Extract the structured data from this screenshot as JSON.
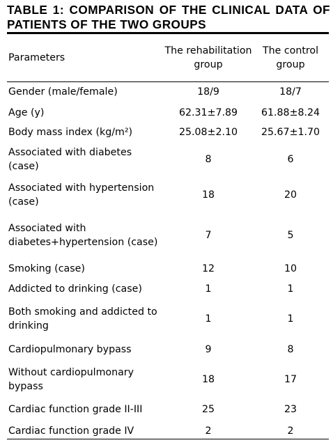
{
  "title": "TABLE 1: COMPARISON OF THE CLINICAL DATA OF PATIENTS OF THE TWO GROUPS",
  "columns": {
    "parameters": "Parameters",
    "rehab": "The rehabilitation group",
    "control": "The control group"
  },
  "rows": [
    {
      "param": "Gender (male/female)",
      "rehab": "18/9",
      "control": "18/7"
    },
    {
      "param": "Age (y)",
      "rehab": "62.31±7.89",
      "control": "61.88±8.24"
    },
    {
      "param": "Body mass index (kg/m²)",
      "rehab": "25.08±2.10",
      "control": "25.67±1.70"
    },
    {
      "param": "Associated with diabetes (case)",
      "rehab": "8",
      "control": "6"
    },
    {
      "param": "Associated with hypertension (case)",
      "rehab": "18",
      "control": "20"
    },
    {
      "param": "Associated with diabetes+hypertension (case)",
      "rehab": "7",
      "control": "5"
    },
    {
      "param": "Smoking (case)",
      "rehab": "12",
      "control": "10"
    },
    {
      "param": "Addicted to drinking (case)",
      "rehab": "1",
      "control": "1"
    },
    {
      "param": "Both smoking and addicted to drinking",
      "rehab": "1",
      "control": "1"
    },
    {
      "param": "Cardiopulmonary bypass",
      "rehab": "9",
      "control": "8"
    },
    {
      "param": "Without cardiopulmonary bypass",
      "rehab": "18",
      "control": "17"
    },
    {
      "param": "Cardiac function grade II-III",
      "rehab": "25",
      "control": "23"
    },
    {
      "param": "Cardiac function grade IV",
      "rehab": "2",
      "control": "2"
    }
  ]
}
